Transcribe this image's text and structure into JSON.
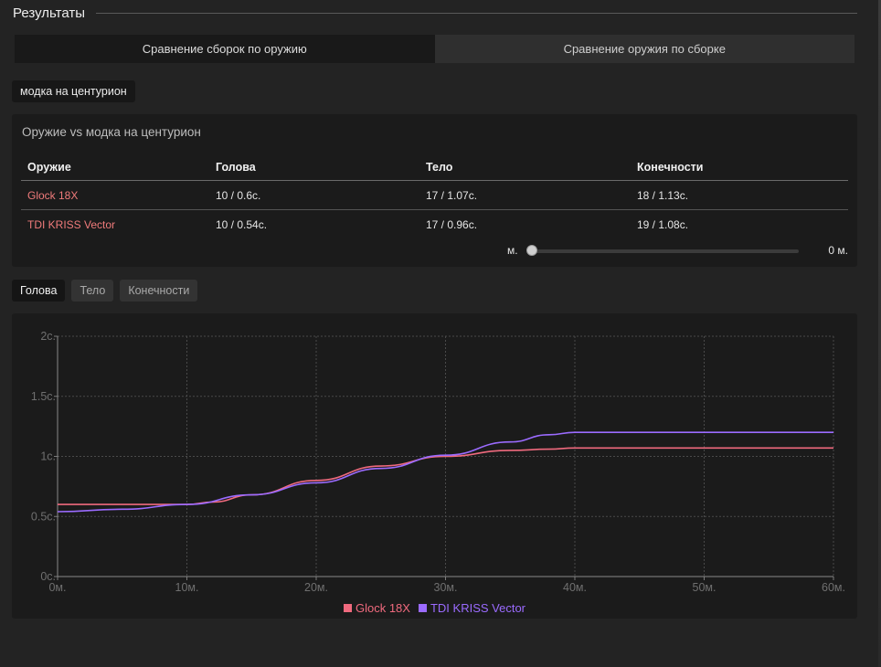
{
  "section": {
    "title": "Результаты"
  },
  "mode_tabs": [
    {
      "label": "Сравнение сборок по оружию",
      "active": true
    },
    {
      "label": "Сравнение оружия по сборке",
      "active": false
    }
  ],
  "build_chip": "модка на центурион",
  "table": {
    "title": "Оружие vs модка на центурион",
    "headers": [
      "Оружие",
      "Голова",
      "Тело",
      "Конечности"
    ],
    "rows": [
      {
        "weapon": "Glock 18X",
        "head": "10 / 0.6c.",
        "body": "17 / 1.07c.",
        "limbs": "18 / 1.13c."
      },
      {
        "weapon": "TDI KRISS Vector",
        "head": "10 / 0.54c.",
        "body": "17 / 0.96c.",
        "limbs": "19 / 1.08c."
      }
    ],
    "distance": {
      "left_label": "м.",
      "value_label": "0 м.",
      "value": 0
    }
  },
  "part_tabs": [
    {
      "label": "Голова",
      "active": true
    },
    {
      "label": "Тело",
      "active": false
    },
    {
      "label": "Конечности",
      "active": false
    }
  ],
  "colors": {
    "glock": "#f06a7e",
    "vector": "#9b6bff",
    "grid": "#4a4a4a"
  },
  "chart_data": {
    "type": "line",
    "x_tick_labels": [
      "0м.",
      "10м.",
      "20м.",
      "30м.",
      "40м.",
      "50м.",
      "60м."
    ],
    "y_tick_labels": [
      "0c.",
      "0.5c.",
      "1c.",
      "1.5c.",
      "2c."
    ],
    "xlim": [
      0,
      60
    ],
    "ylim": [
      0,
      2
    ],
    "grid": true,
    "legend_position": "bottom",
    "series": [
      {
        "name": "Glock 18X",
        "color": "#f06a7e",
        "x": [
          0,
          10,
          12,
          15,
          20,
          25,
          30,
          35,
          38,
          40,
          50,
          60
        ],
        "y": [
          0.6,
          0.6,
          0.62,
          0.68,
          0.8,
          0.92,
          1.0,
          1.05,
          1.06,
          1.07,
          1.07,
          1.07
        ]
      },
      {
        "name": "TDI KRISS Vector",
        "color": "#9b6bff",
        "x": [
          0,
          5,
          10,
          15,
          20,
          25,
          30,
          35,
          38,
          40,
          50,
          60
        ],
        "y": [
          0.54,
          0.56,
          0.6,
          0.68,
          0.78,
          0.9,
          1.01,
          1.12,
          1.18,
          1.2,
          1.2,
          1.2
        ]
      }
    ]
  }
}
